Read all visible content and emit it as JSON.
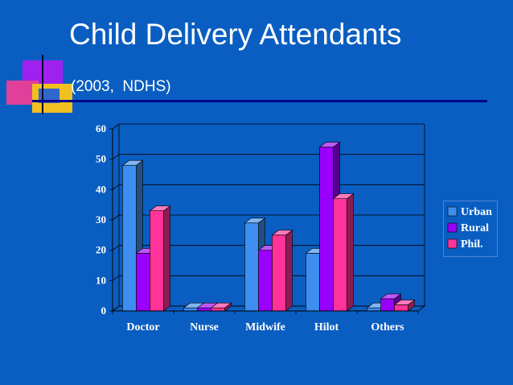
{
  "slide": {
    "title": "Child Delivery Attendants",
    "subtitle": "(2003,  NDHS)"
  },
  "colors": {
    "background": "#0a5ec2",
    "Urban": "#3d8ef0",
    "Rural": "#9900ff",
    "Phil.": "#ff3399"
  },
  "chart_data": {
    "type": "bar",
    "categories": [
      "Doctor",
      "Nurse",
      "Midwife",
      "Hilot",
      "Others"
    ],
    "series": [
      {
        "name": "Urban",
        "values": [
          48,
          1,
          29,
          19,
          1
        ]
      },
      {
        "name": "Rural",
        "values": [
          19,
          1,
          20,
          54,
          4
        ]
      },
      {
        "name": "Phil.",
        "values": [
          33,
          1,
          25,
          37,
          2
        ]
      }
    ],
    "ylim": [
      0,
      60
    ],
    "yticks": [
      0,
      10,
      20,
      30,
      40,
      50,
      60
    ],
    "grid": true,
    "legend": "right",
    "style": "3d"
  }
}
